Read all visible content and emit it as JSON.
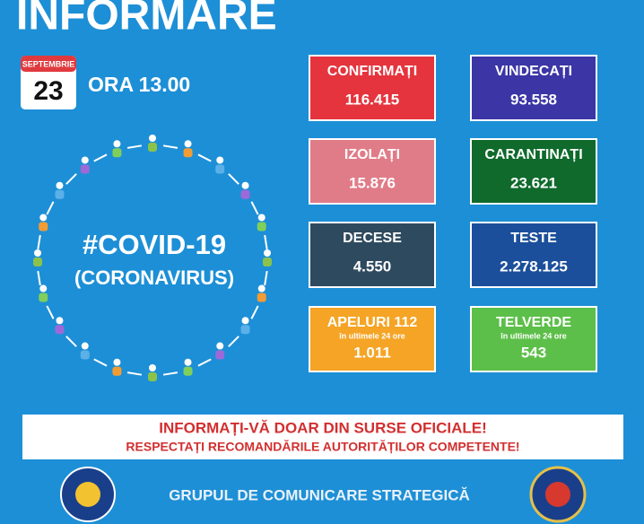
{
  "header": {
    "title": "INFORMARE",
    "month": "SEPTEMBRIE",
    "day": "23",
    "time": "ORA 13.00"
  },
  "hashtag": {
    "title": "#COVID-19",
    "subtitle": "(CORONAVIRUS)"
  },
  "stats": [
    {
      "label": "CONFIRMAȚI",
      "value": "116.415"
    },
    {
      "label": "VINDECAȚI",
      "value": "93.558"
    },
    {
      "label": "IZOLAȚI",
      "value": "15.876"
    },
    {
      "label": "CARANTINAȚI",
      "value": "23.621"
    },
    {
      "label": "DECESE",
      "value": "4.550"
    },
    {
      "label": "TESTE",
      "value": "2.278.125"
    },
    {
      "label": "APELURI 112",
      "note": "în ultimele 24 ore",
      "value": "1.011"
    },
    {
      "label": "TELVERDE",
      "note": "în ultimele 24 ore",
      "value": "543"
    }
  ],
  "banner": {
    "line1": "INFORMAȚI-VĂ DOAR DIN SURSE OFICIALE!",
    "line2": "RESPECTAȚI RECOMANDĂRILE AUTORITĂȚILOR COMPETENTE!"
  },
  "footer": {
    "text": "GRUPUL DE COMUNICARE STRATEGICĂ"
  }
}
